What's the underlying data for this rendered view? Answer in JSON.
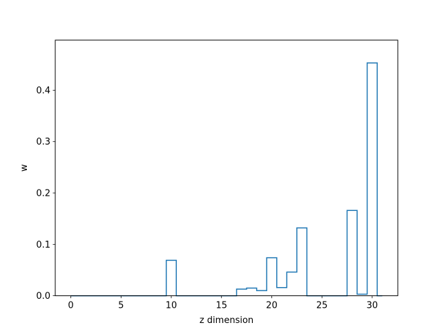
{
  "chart_data": {
    "type": "step",
    "xlabel": "z dimension",
    "ylabel": "w",
    "xlim": [
      -1.55,
      32.55
    ],
    "ylim": [
      0,
      0.4975
    ],
    "xticks": [
      0,
      5,
      10,
      15,
      20,
      25,
      30
    ],
    "yticks": [
      0.0,
      0.1,
      0.2,
      0.3,
      0.4
    ],
    "xtick_labels": [
      "0",
      "5",
      "10",
      "15",
      "20",
      "25",
      "30"
    ],
    "ytick_labels": [
      "0.0",
      "0.1",
      "0.2",
      "0.3",
      "0.4"
    ],
    "grid": false,
    "color": "#1f77b4",
    "x": [
      0,
      1,
      2,
      3,
      4,
      5,
      6,
      7,
      8,
      9,
      10,
      11,
      12,
      13,
      14,
      15,
      16,
      17,
      18,
      19,
      20,
      21,
      22,
      23,
      24,
      25,
      26,
      27,
      28,
      29,
      30,
      31
    ],
    "values": [
      0,
      0,
      0,
      0,
      0,
      0,
      0,
      0,
      0,
      0,
      0.069,
      0,
      0,
      0,
      0,
      0,
      0,
      0.013,
      0.015,
      0.01,
      0.074,
      0.016,
      0.046,
      0.132,
      0,
      0,
      0,
      0,
      0.166,
      0.003,
      0.453,
      0
    ]
  }
}
